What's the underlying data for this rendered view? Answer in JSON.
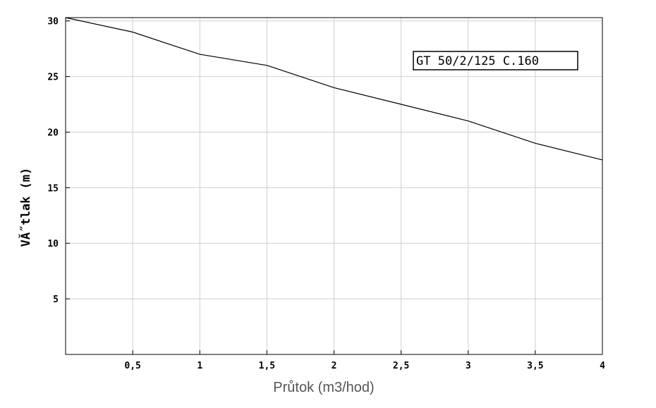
{
  "chart_data": {
    "type": "line",
    "title": "",
    "xlabel": "Průtok (m3/hod)",
    "ylabel": "VĂ˝tlak (m)",
    "x_ticks": [
      "0,5",
      "1",
      "1,5",
      "2",
      "2,5",
      "3",
      "3,5",
      "4"
    ],
    "y_ticks": [
      "5",
      "10",
      "15",
      "20",
      "25",
      "30"
    ],
    "xlim": [
      0,
      4
    ],
    "ylim": [
      0,
      30.3
    ],
    "grid": true,
    "legend": {
      "placement": "top-right",
      "entries": [
        "GT 50/2/125 C.160"
      ]
    },
    "series": [
      {
        "name": "GT 50/2/125 C.160",
        "x": [
          0,
          0.5,
          1,
          1.5,
          2,
          2.5,
          3,
          3.5,
          4
        ],
        "y": [
          30.3,
          29,
          27,
          26,
          24,
          22.5,
          21,
          19,
          17.5
        ]
      }
    ]
  }
}
